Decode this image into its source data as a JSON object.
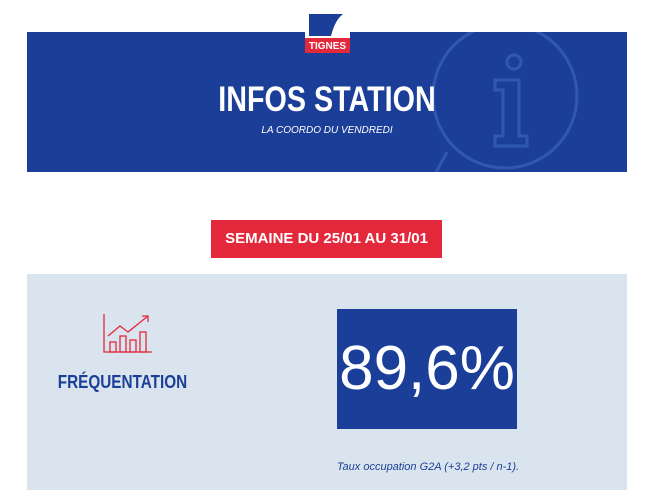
{
  "header": {
    "logo": "TIGNES",
    "title": "INFOS STATION",
    "subtitle": "LA COORDO DU VENDREDI"
  },
  "week_badge": "SEMAINE DU 25/01 AU 31/01",
  "stat": {
    "label": "FRÉQUENTATION",
    "value": "89,6%",
    "caption": "Taux occupation G2A (+3,2 pts / n-1)."
  }
}
